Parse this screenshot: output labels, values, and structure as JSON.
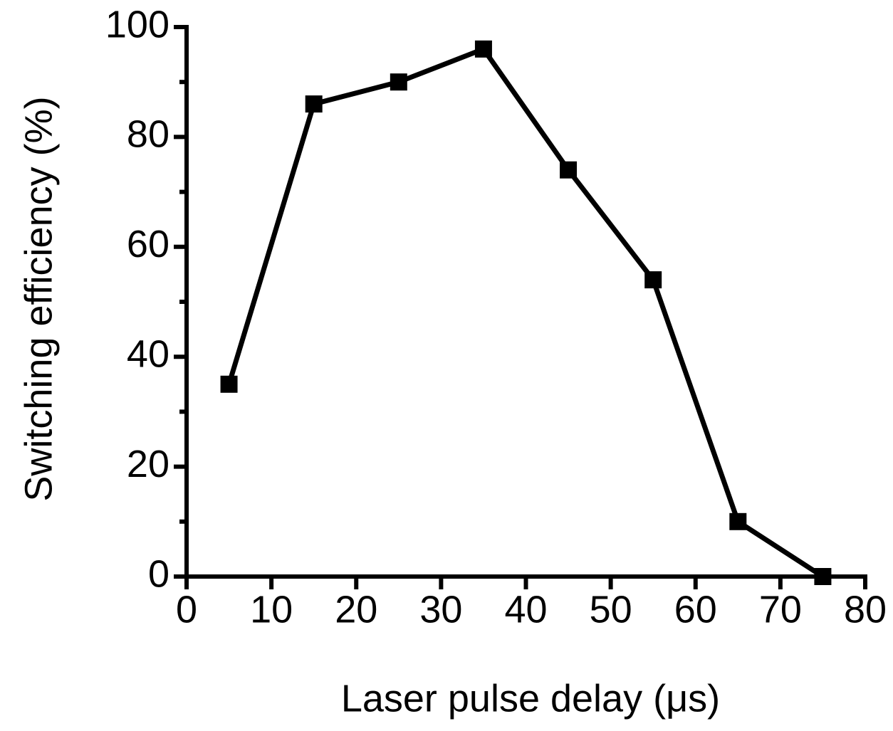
{
  "chart_data": {
    "type": "line",
    "x_label": "Laser pulse delay (μs)",
    "y_label": "Switching efficiency (%)",
    "x": [
      5,
      15,
      25,
      35,
      45,
      55,
      65,
      75
    ],
    "series": [
      {
        "color": "#000000",
        "values": [
          35,
          86,
          90,
          96,
          74,
          54,
          10,
          0
        ]
      }
    ],
    "xlim": [
      0,
      80
    ],
    "xticks": [
      0,
      10,
      20,
      30,
      40,
      50,
      60,
      70,
      80
    ],
    "ylim": [
      0,
      100
    ],
    "yticks": [
      0,
      20,
      40,
      60,
      80,
      100
    ],
    "y_minor_ticks": [
      10,
      30,
      50,
      70,
      90
    ],
    "marker": "square",
    "grid": false
  }
}
